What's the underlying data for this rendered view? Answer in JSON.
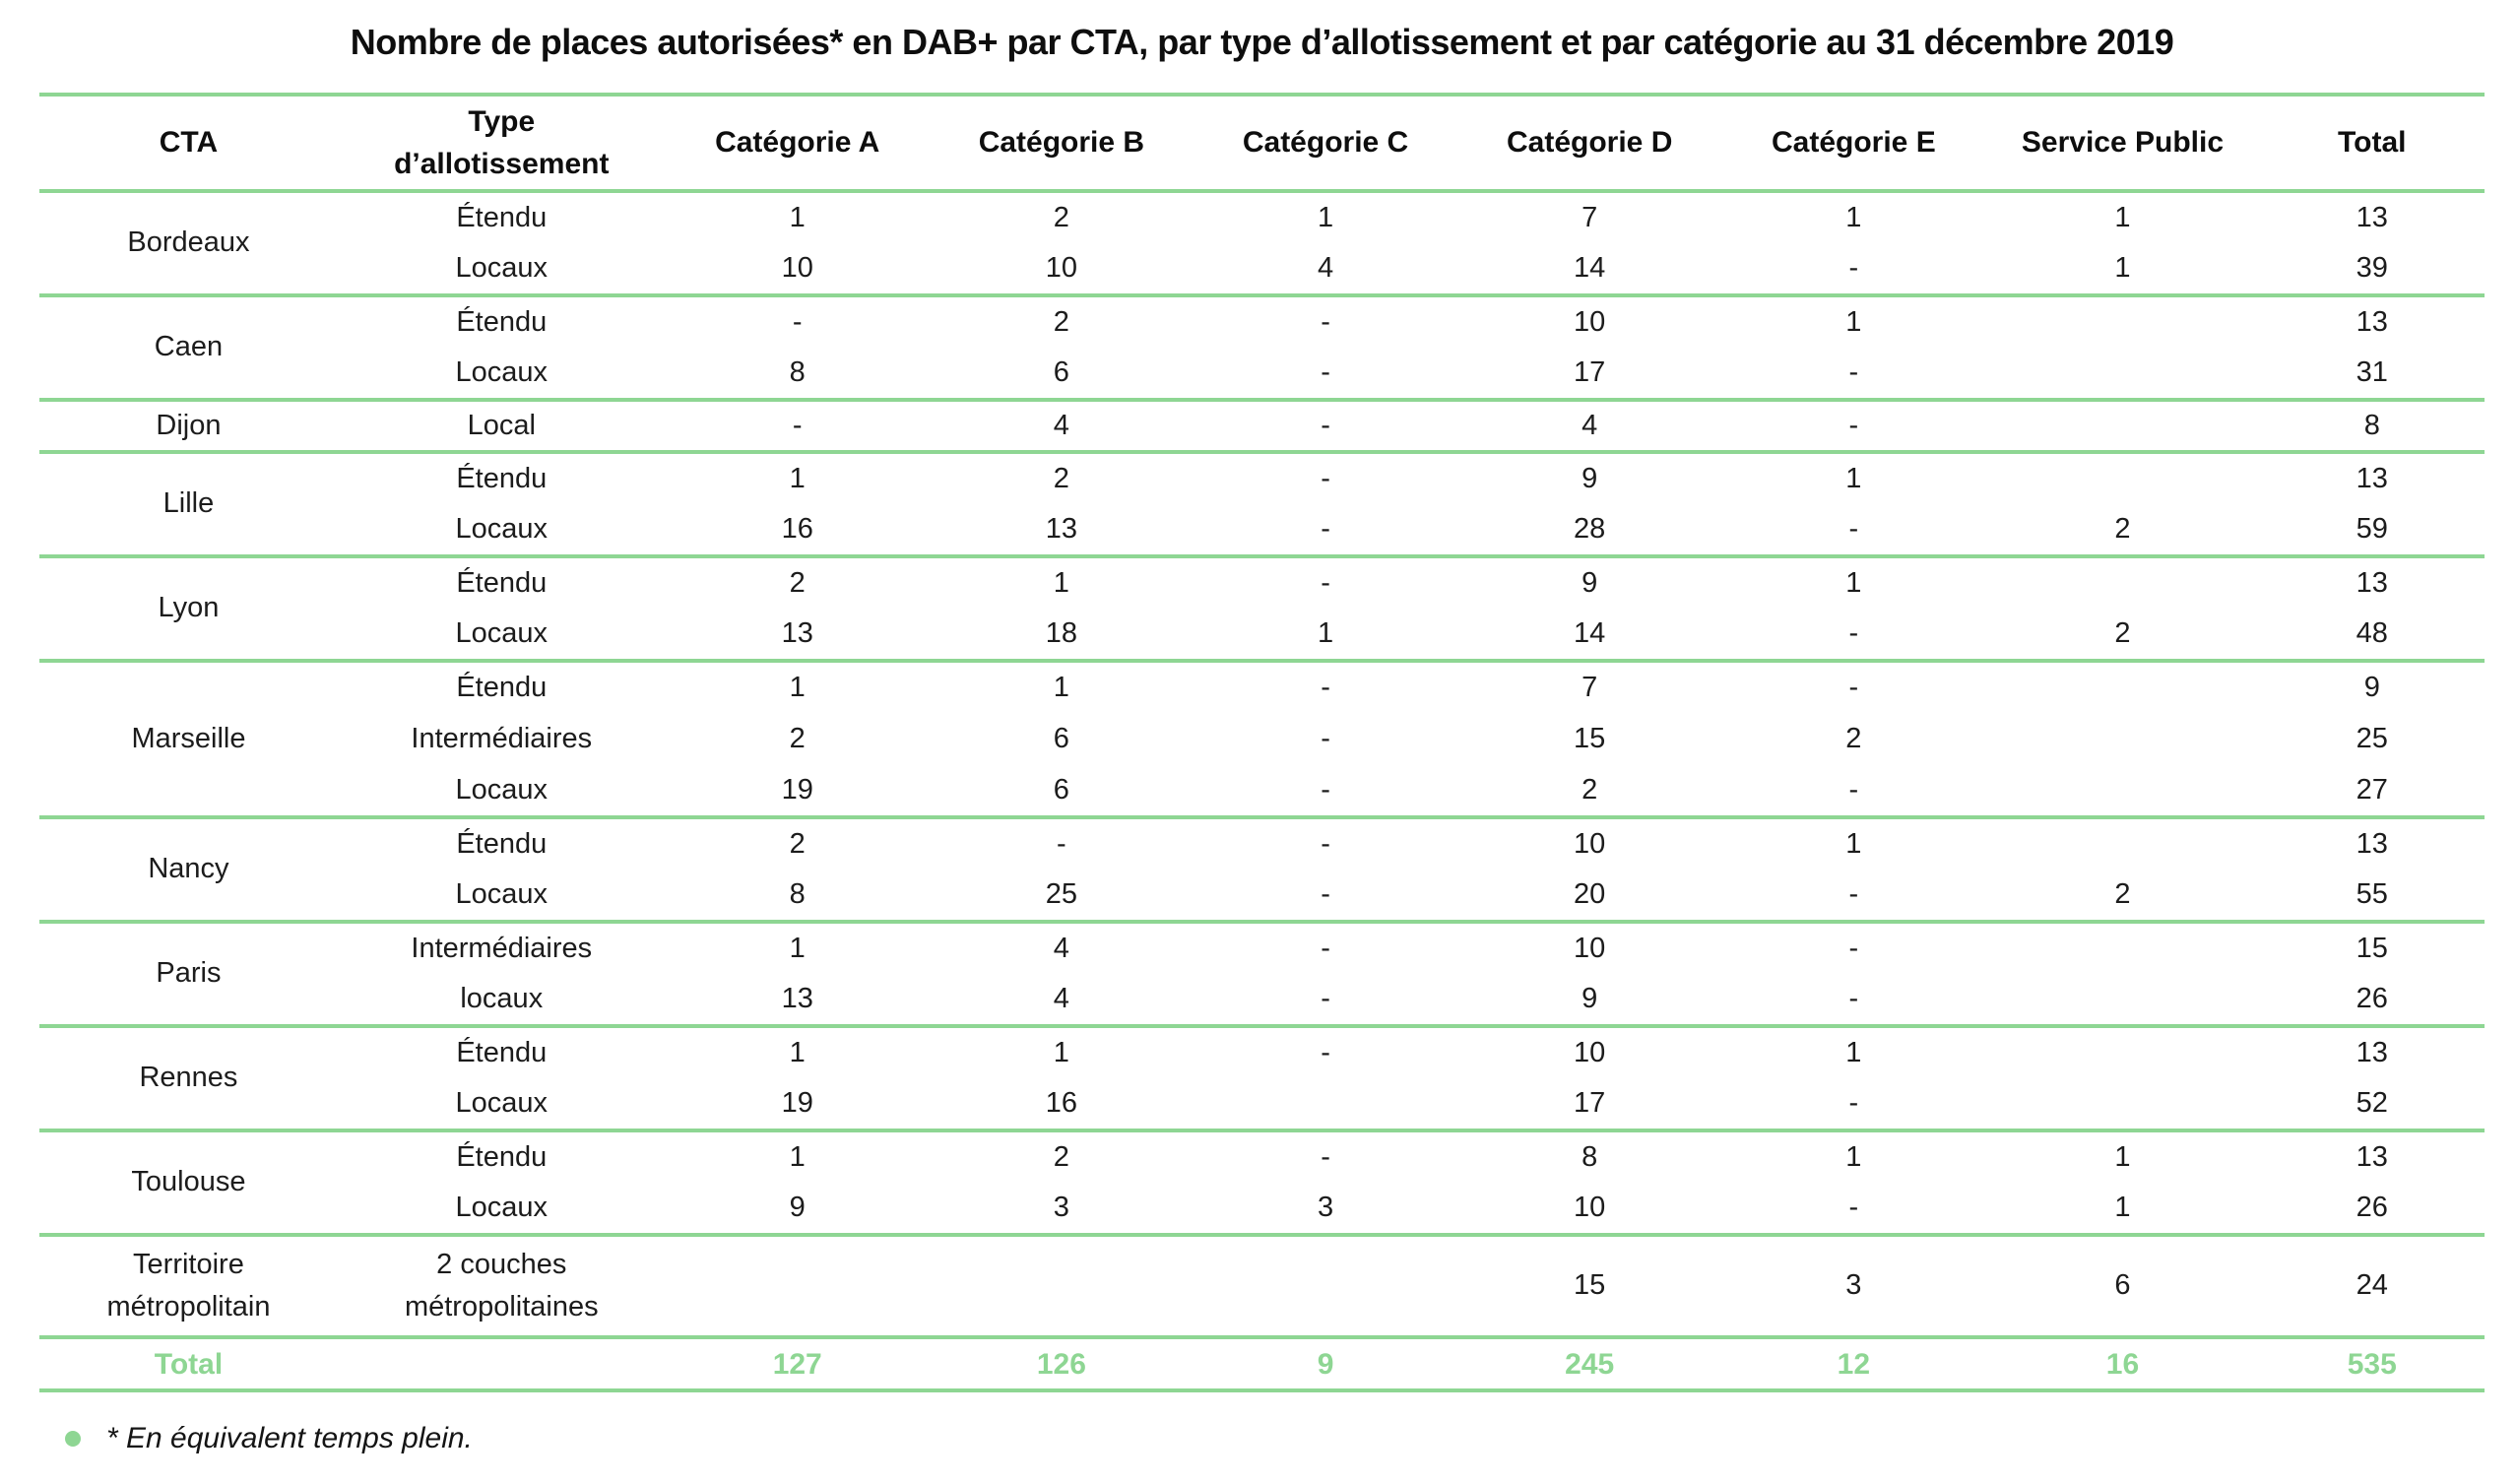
{
  "title": "Nombre de places autorisées* en DAB+ par CTA, par type d’allotissement et par catégorie au 31 décembre 2019",
  "colors": {
    "accent_green": "#8ED693",
    "text": "#1c1c1c"
  },
  "table": {
    "headers": [
      "CTA",
      "Type\nd’allotissement",
      "Catégorie A",
      "Catégorie B",
      "Catégorie C",
      "Catégorie D",
      "Catégorie E",
      "Service Public",
      "Total"
    ],
    "groups": [
      {
        "cta": "Bordeaux",
        "rows": [
          {
            "type": "Étendu",
            "values": [
              "1",
              "2",
              "1",
              "7",
              "1",
              "1",
              "13"
            ]
          },
          {
            "type": "Locaux",
            "values": [
              "10",
              "10",
              "4",
              "14",
              "-",
              "1",
              "39"
            ]
          }
        ]
      },
      {
        "cta": "Caen",
        "rows": [
          {
            "type": "Étendu",
            "values": [
              "-",
              "2",
              "-",
              "10",
              "1",
              "",
              "13"
            ]
          },
          {
            "type": "Locaux",
            "values": [
              "8",
              "6",
              "-",
              "17",
              "-",
              "",
              "31"
            ]
          }
        ]
      },
      {
        "cta": "Dijon",
        "rows": [
          {
            "type": "Local",
            "values": [
              "-",
              "4",
              "-",
              "4",
              "-",
              "",
              "8"
            ]
          }
        ]
      },
      {
        "cta": "Lille",
        "rows": [
          {
            "type": "Étendu",
            "values": [
              "1",
              "2",
              "-",
              "9",
              "1",
              "",
              "13"
            ]
          },
          {
            "type": "Locaux",
            "values": [
              "16",
              "13",
              "-",
              "28",
              "-",
              "2",
              "59"
            ]
          }
        ]
      },
      {
        "cta": "Lyon",
        "rows": [
          {
            "type": "Étendu",
            "values": [
              "2",
              "1",
              "-",
              "9",
              "1",
              "",
              "13"
            ]
          },
          {
            "type": "Locaux",
            "values": [
              "13",
              "18",
              "1",
              "14",
              "-",
              "2",
              "48"
            ]
          }
        ]
      },
      {
        "cta": "Marseille",
        "rows": [
          {
            "type": "Étendu",
            "values": [
              "1",
              "1",
              "-",
              "7",
              "-",
              "",
              "9"
            ]
          },
          {
            "type": "Intermédiaires",
            "values": [
              "2",
              "6",
              "-",
              "15",
              "2",
              "",
              "25"
            ]
          },
          {
            "type": "Locaux",
            "values": [
              "19",
              "6",
              "-",
              "2",
              "-",
              "",
              "27"
            ]
          }
        ]
      },
      {
        "cta": "Nancy",
        "rows": [
          {
            "type": "Étendu",
            "values": [
              "2",
              "-",
              "-",
              "10",
              "1",
              "",
              "13"
            ]
          },
          {
            "type": "Locaux",
            "values": [
              "8",
              "25",
              "-",
              "20",
              "-",
              "2",
              "55"
            ]
          }
        ]
      },
      {
        "cta": "Paris",
        "rows": [
          {
            "type": "Intermédiaires",
            "values": [
              "1",
              "4",
              "-",
              "10",
              "-",
              "",
              "15"
            ]
          },
          {
            "type": "locaux",
            "values": [
              "13",
              "4",
              "-",
              "9",
              "-",
              "",
              "26"
            ]
          }
        ]
      },
      {
        "cta": "Rennes",
        "rows": [
          {
            "type": "Étendu",
            "values": [
              "1",
              "1",
              "-",
              "10",
              "1",
              "",
              "13"
            ]
          },
          {
            "type": "Locaux",
            "values": [
              "19",
              "16",
              "",
              "17",
              "-",
              "",
              "52"
            ]
          }
        ]
      },
      {
        "cta": "Toulouse",
        "rows": [
          {
            "type": "Étendu",
            "values": [
              "1",
              "2",
              "-",
              "8",
              "1",
              "1",
              "13"
            ]
          },
          {
            "type": "Locaux",
            "values": [
              "9",
              "3",
              "3",
              "10",
              "-",
              "1",
              "26"
            ]
          }
        ]
      },
      {
        "cta": "Territoire\nmétropolitain",
        "rows": [
          {
            "type": "2 couches\nmétropolitaines",
            "values": [
              "",
              "",
              "",
              "15",
              "3",
              "6",
              "24"
            ]
          }
        ]
      }
    ],
    "total_row": {
      "label": "Total",
      "values": [
        "127",
        "126",
        "9",
        "245",
        "12",
        "16",
        "535"
      ]
    }
  },
  "footnote": {
    "text": "* En équivalent temps plein."
  }
}
